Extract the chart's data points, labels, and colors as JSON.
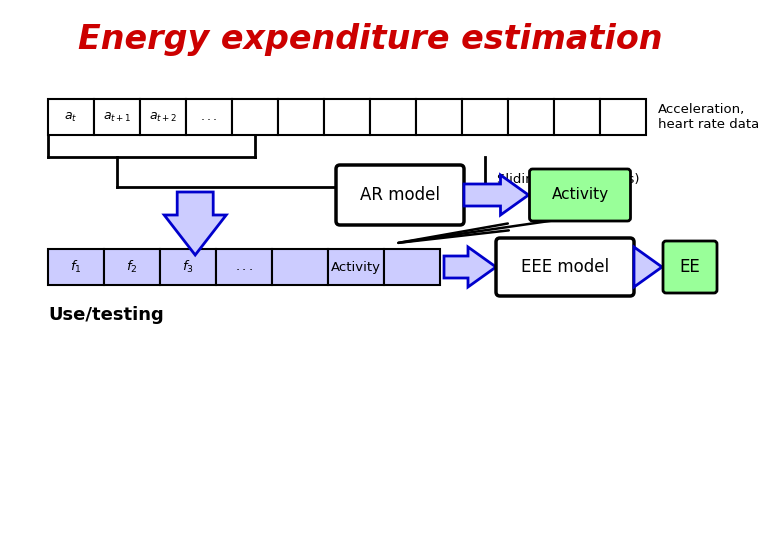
{
  "title": "Energy expenditure estimation",
  "title_color": "#cc0000",
  "title_fontsize": 24,
  "bg_color": "#ffffff",
  "accel_label": "Acceleration,\nheart rate data",
  "sliding_label": "Sliding window (10 s)",
  "ar_model_label": "AR model",
  "activity_label": "Activity",
  "eee_model_label": "EEE model",
  "ee_label": "EE",
  "use_testing_label": "Use/testing",
  "arrow_face": "#ccccff",
  "arrow_edge": "#0000cc",
  "green": "#99ff99",
  "black": "#000000",
  "white": "#ffffff",
  "cell_face": "#ccccff",
  "top_cell_face": "#ffffff"
}
